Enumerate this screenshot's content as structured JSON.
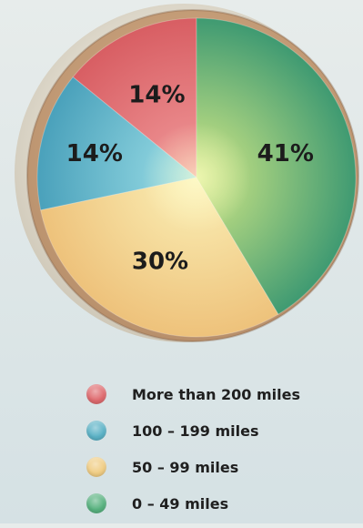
{
  "chart_data": {
    "type": "pie",
    "title": "",
    "categories": [
      "More than 200 miles",
      "100 - 199 miles",
      "50 - 99 miles",
      "0 - 49 miles"
    ],
    "values": [
      14,
      14,
      30,
      41
    ],
    "value_labels": [
      "14%",
      "14%",
      "30%",
      "41%"
    ],
    "colors": [
      "#df6b6f",
      "#5bb2c6",
      "#f0cd84",
      "#58b27f"
    ],
    "legend_position": "bottom"
  },
  "legend": {
    "items": [
      {
        "label": "More than 200 miles",
        "color": "#df6b6f"
      },
      {
        "label": "100 – 199 miles",
        "color": "#5bb2c6"
      },
      {
        "label": "50 – 99 miles",
        "color": "#f0cd84"
      },
      {
        "label": "0 – 49 miles",
        "color": "#58b27f"
      }
    ]
  }
}
